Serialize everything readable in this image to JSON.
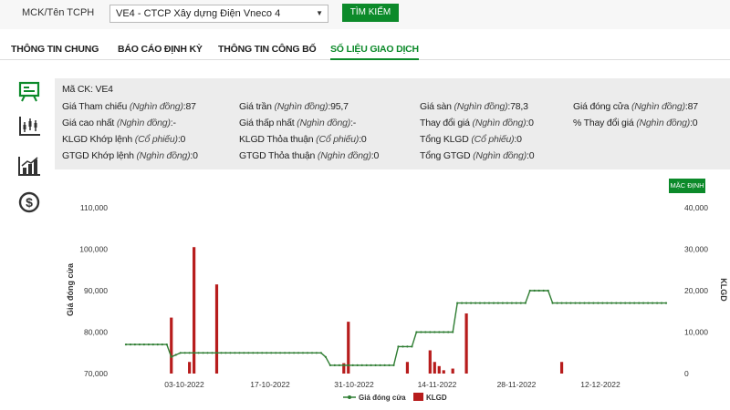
{
  "search": {
    "label": "MCK/Tên TCPH",
    "selected": "VE4 - CTCP Xây dựng Điện Vneco 4",
    "button": "TÌM KIẾM"
  },
  "tabs": [
    {
      "label": "THÔNG TIN CHUNG"
    },
    {
      "label": "BÁO CÁO ĐỊNH KỲ"
    },
    {
      "label": "THÔNG TIN CÔNG BỐ"
    },
    {
      "label": "SỐ LIỆU GIAO DỊCH",
      "active": true
    }
  ],
  "sidebar_icons": [
    "board-icon",
    "candlestick-chart-icon",
    "bar-chart-icon",
    "dollar-icon"
  ],
  "info": {
    "code_label": "Mã CK:",
    "code_value": "VE4",
    "rows": [
      [
        {
          "label": "Giá Tham chiếu",
          "unit": "(Nghìn đồng)",
          "value": "87"
        },
        {
          "label": "Giá trần",
          "unit": "(Nghìn đồng)",
          "value": "95,7"
        },
        {
          "label": "Giá sàn",
          "unit": "(Nghìn đồng)",
          "value": "78,3"
        },
        {
          "label": "Giá đóng cửa",
          "unit": "(Nghìn đồng)",
          "value": "87"
        }
      ],
      [
        {
          "label": "Giá cao nhất",
          "unit": "(Nghìn đồng)",
          "value": "-"
        },
        {
          "label": "Giá thấp nhất",
          "unit": "(Nghìn đồng)",
          "value": "-"
        },
        {
          "label": "Thay đổi giá",
          "unit": "(Nghìn đồng)",
          "value": "0"
        },
        {
          "label": "% Thay đổi giá",
          "unit": "(Nghìn đồng)",
          "value": "0"
        }
      ],
      [
        {
          "label": "KLGD Khớp lệnh",
          "unit": "(Cổ phiếu)",
          "value": "0"
        },
        {
          "label": "KLGD Thỏa thuận",
          "unit": "(Cổ phiếu)",
          "value": "0"
        },
        {
          "label": "Tổng KLGD",
          "unit": "(Cổ phiếu)",
          "value": "0"
        },
        {
          "label": "",
          "unit": "",
          "value": ""
        }
      ],
      [
        {
          "label": "GTGD Khớp lệnh",
          "unit": "(Nghìn đồng)",
          "value": "0"
        },
        {
          "label": "GTGD Thỏa thuận",
          "unit": "(Nghìn đồng)",
          "value": "0"
        },
        {
          "label": "Tổng GTGD",
          "unit": "(Nghìn đồng)",
          "value": "0"
        },
        {
          "label": "",
          "unit": "",
          "value": ""
        }
      ]
    ]
  },
  "chart_button": "MẶC ĐỊNH",
  "colors": {
    "accent": "#0c8a2a",
    "line": "#2e7d32",
    "bar": "#b71c1c"
  },
  "chart_data": {
    "type": "line",
    "ylabel": "Giá đóng cửa",
    "y2label": "KLGD",
    "ylim": [
      70000,
      110000
    ],
    "y2lim": [
      0,
      40000
    ],
    "yticks": [
      "110,000",
      "100,000",
      "90,000",
      "80,000",
      "70,000"
    ],
    "y2ticks": [
      "40,000",
      "30,000",
      "20,000",
      "10,000",
      "0"
    ],
    "xtick_labels": [
      "03-10-2022",
      "17-10-2022",
      "31-10-2022",
      "14-11-2022",
      "28-11-2022",
      "12-12-2022"
    ],
    "legend": [
      "Giá đóng cửa",
      "KLGD"
    ],
    "price_series": [
      77000,
      77000,
      77000,
      77000,
      77000,
      77000,
      77000,
      77000,
      77000,
      77000,
      74000,
      74500,
      75000,
      75000,
      75000,
      75000,
      75000,
      75000,
      75000,
      75000,
      75000,
      75000,
      75000,
      75000,
      75000,
      75000,
      75000,
      75000,
      75000,
      75000,
      75000,
      75000,
      75000,
      75000,
      75000,
      75000,
      75000,
      75000,
      75000,
      75000,
      75000,
      75000,
      75000,
      75000,
      74000,
      72000,
      72000,
      72000,
      72000,
      72000,
      72000,
      72000,
      72000,
      72000,
      72000,
      72000,
      72000,
      72000,
      72000,
      72000,
      76500,
      76500,
      76500,
      76500,
      80000,
      80000,
      80000,
      80000,
      80000,
      80000,
      80000,
      80000,
      80000,
      87000,
      87000,
      87000,
      87000,
      87000,
      87000,
      87000,
      87000,
      87000,
      87000,
      87000,
      87000,
      87000,
      87000,
      87000,
      87000,
      90000,
      90000,
      90000,
      90000,
      90000,
      87000,
      87000,
      87000,
      87000,
      87000,
      87000,
      87000,
      87000,
      87000,
      87000,
      87000,
      87000,
      87000,
      87000,
      87000,
      87000,
      87000,
      87000,
      87000,
      87000,
      87000,
      87000,
      87000,
      87000,
      87000,
      87000
    ],
    "volume_bars": [
      {
        "index": 10,
        "value": 13500
      },
      {
        "index": 14,
        "value": 2800
      },
      {
        "index": 15,
        "value": 30500
      },
      {
        "index": 20,
        "value": 21500
      },
      {
        "index": 48,
        "value": 2500
      },
      {
        "index": 49,
        "value": 12500
      },
      {
        "index": 62,
        "value": 2800
      },
      {
        "index": 67,
        "value": 5600
      },
      {
        "index": 68,
        "value": 2800
      },
      {
        "index": 69,
        "value": 1800
      },
      {
        "index": 70,
        "value": 800
      },
      {
        "index": 72,
        "value": 1200
      },
      {
        "index": 75,
        "value": 14500
      },
      {
        "index": 96,
        "value": 2800
      }
    ]
  }
}
